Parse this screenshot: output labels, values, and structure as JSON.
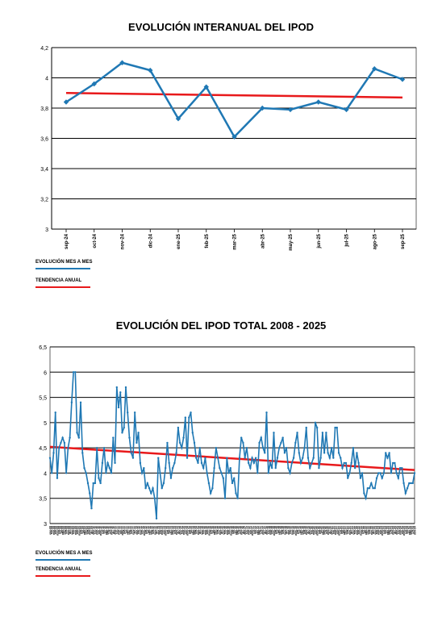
{
  "colors": {
    "series": "#1f78b4",
    "trend": "#e8191b",
    "grid": "#000000"
  },
  "chart_data": [
    {
      "type": "line",
      "title": "EVOLUCIÓN INTERANUAL DEL IPOD",
      "categories": [
        "sep-24",
        "oct-24",
        "nov-24",
        "dic-24",
        "ene-25",
        "feb-25",
        "mar-25",
        "abr-25",
        "may-25",
        "jun-25",
        "jul-25",
        "ago-25",
        "sep-25"
      ],
      "ylim": [
        3,
        4.2
      ],
      "yticks": [
        "3",
        "3,2",
        "3,4",
        "3,6",
        "3,8",
        "4",
        "4,2"
      ],
      "ytick_values": [
        3,
        3.2,
        3.4,
        3.6,
        3.8,
        4,
        4.2
      ],
      "grid": true,
      "series": [
        {
          "name": "EVOLUCIÓN MES A MES",
          "values": [
            3.84,
            3.96,
            4.1,
            4.05,
            3.73,
            3.94,
            3.61,
            3.8,
            3.79,
            3.84,
            3.79,
            4.06,
            3.99
          ]
        },
        {
          "name": "TENDENCIA ANUAL",
          "values": [
            3.9,
            3.89,
            3.89,
            3.89,
            3.89,
            3.88,
            3.88,
            3.88,
            3.88,
            3.87,
            3.87,
            3.87,
            3.87
          ]
        }
      ],
      "legend_position": "bottom-left"
    },
    {
      "type": "line",
      "title": "EVOLUCIÓN DEL IPOD TOTAL 2008 - 2025",
      "ylim": [
        3,
        6.5
      ],
      "yticks": [
        "3",
        "3,5",
        "4",
        "4,5",
        "5",
        "5,5",
        "6",
        "6,5"
      ],
      "ytick_values": [
        3,
        3.5,
        4,
        4.5,
        5,
        5.5,
        6,
        6.5
      ],
      "grid": true,
      "x_start": "ene-08",
      "x_end": "sep-25",
      "series": [
        {
          "name": "EVOLUCIÓN MES A MES",
          "values": [
            4.3,
            4.0,
            4.4,
            5.2,
            3.9,
            4.5,
            4.6,
            4.7,
            4.6,
            4.0,
            4.5,
            4.7,
            5.4,
            6.0,
            6.0,
            4.8,
            4.7,
            5.4,
            4.4,
            4.1,
            4.0,
            3.8,
            3.6,
            3.3,
            3.8,
            3.8,
            4.5,
            3.9,
            3.8,
            4.2,
            4.5,
            4.0,
            4.2,
            4.1,
            4.0,
            4.7,
            4.2,
            5.7,
            5.3,
            5.6,
            4.8,
            4.9,
            5.7,
            5.2,
            4.7,
            4.4,
            4.3,
            5.2,
            4.6,
            4.8,
            4.2,
            4.0,
            4.1,
            3.7,
            3.8,
            3.7,
            3.6,
            3.7,
            3.5,
            3.1,
            4.3,
            4.0,
            3.7,
            3.8,
            4.1,
            4.6,
            4.2,
            3.9,
            4.1,
            4.2,
            4.4,
            4.9,
            4.6,
            4.5,
            4.7,
            5.1,
            4.3,
            5.1,
            5.2,
            4.8,
            4.6,
            4.3,
            4.2,
            4.5,
            4.2,
            4.1,
            4.3,
            4.0,
            3.8,
            3.6,
            3.7,
            4.1,
            4.5,
            4.3,
            4.1,
            4.0,
            3.9,
            3.5,
            4.3,
            4.0,
            4.1,
            3.8,
            3.9,
            3.6,
            3.5,
            4.3,
            4.7,
            4.6,
            4.3,
            4.5,
            4.2,
            4.1,
            4.3,
            4.2,
            4.3,
            4.0,
            4.6,
            4.7,
            4.5,
            4.4,
            5.2,
            4.0,
            4.2,
            4.1,
            4.8,
            4.1,
            4.3,
            4.5,
            4.6,
            4.7,
            4.4,
            4.5,
            4.1,
            4.0,
            4.2,
            4.3,
            4.6,
            4.8,
            4.4,
            4.2,
            4.3,
            4.5,
            4.9,
            4.3,
            4.1,
            4.2,
            4.3,
            5.0,
            4.9,
            4.1,
            4.3,
            4.8,
            4.4,
            4.8,
            4.4,
            4.3,
            4.5,
            4.3,
            4.9,
            4.9,
            4.4,
            4.3,
            4.1,
            4.2,
            4.2,
            3.9,
            4.0,
            4.2,
            4.5,
            4.1,
            4.4,
            4.2,
            3.9,
            4.0,
            3.6,
            3.5,
            3.7,
            3.7,
            3.8,
            3.7,
            3.7,
            3.9,
            4.0,
            4.0,
            3.9,
            4.0,
            4.4,
            4.3,
            4.4,
            4.0,
            4.2,
            4.2,
            4.0,
            3.9,
            4.1,
            4.1,
            3.8,
            3.6,
            3.7,
            3.8,
            3.8,
            3.8,
            4.0
          ]
        },
        {
          "name": "TENDENCIA ANUAL",
          "values": [
            4.52,
            4.06
          ]
        }
      ],
      "legend_position": "bottom-left"
    }
  ],
  "legend": {
    "series_label": "EVOLUCIÓN MES A MES",
    "trend_label": "TENDENCIA ANUAL"
  }
}
